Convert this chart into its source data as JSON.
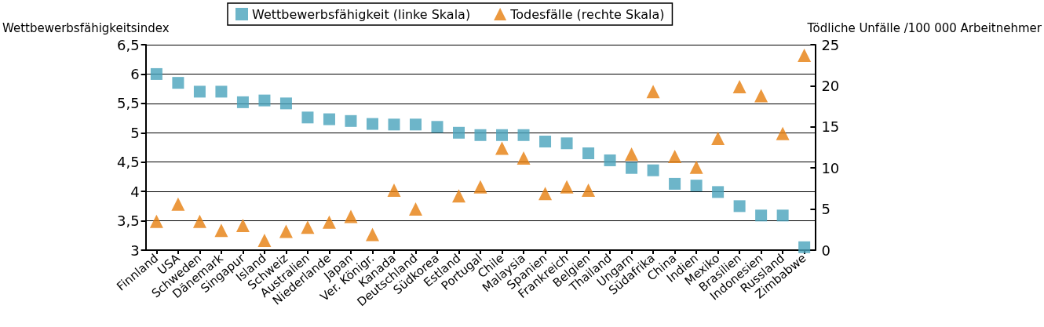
{
  "chart_data": {
    "type": "scatter",
    "ylabel": "Wettbewerbsfähigkeitsindex",
    "y2label": "Tödliche Unfälle /100 000 Arbeitnehmer",
    "categories": [
      "Finnland",
      "USA",
      "Schweden",
      "Dänemark",
      "Singapur",
      "Island",
      "Schweiz",
      "Australien",
      "Niederlande",
      "Japan",
      "Ver. Königr.",
      "Kanada",
      "Deutschland",
      "Südkorea",
      "Estland",
      "Portugal",
      "Chile",
      "Malaysia",
      "Spanien",
      "Frankreich",
      "Belgien",
      "Thailand",
      "Ungarn",
      "Südafrika",
      "China",
      "Indien",
      "Mexiko",
      "Brasilien",
      "Indonesien",
      "Russland",
      "Zimbabwe"
    ],
    "series": [
      {
        "name": "Wettbewerbsfähigkeit (linke Skala)",
        "color": "#48a3bb",
        "marker": "square",
        "values": [
          6.0,
          5.85,
          5.7,
          5.7,
          5.52,
          5.55,
          5.5,
          5.26,
          5.23,
          5.2,
          5.15,
          5.14,
          5.14,
          5.1,
          5.0,
          4.96,
          4.96,
          4.96,
          4.85,
          4.82,
          4.65,
          4.53,
          4.4,
          4.36,
          4.13,
          4.1,
          3.99,
          3.75,
          3.59,
          3.59,
          3.05
        ]
      },
      {
        "name": "Todesfälle (rechte Skala)",
        "color": "#e67e0e",
        "marker": "triangle",
        "axis": "y2",
        "values": [
          3.5,
          5.6,
          3.5,
          2.4,
          3.0,
          1.2,
          2.3,
          2.8,
          3.4,
          4.1,
          1.9,
          7.3,
          5.0,
          null,
          6.6,
          7.7,
          12.4,
          11.2,
          6.9,
          7.7,
          7.3,
          null,
          11.7,
          19.3,
          11.4,
          10.1,
          13.6,
          19.9,
          18.8,
          14.2,
          23.7
        ]
      }
    ],
    "ylim": [
      3,
      6.5
    ],
    "yticks": [
      3,
      {
        "value": 3.5,
        "label": "3,5"
      },
      4,
      {
        "value": 4.5,
        "label": "4,5"
      },
      5,
      {
        "value": 5.5,
        "label": "5,5"
      },
      6,
      {
        "value": 6.5,
        "label": "6,5"
      }
    ],
    "y2lim": [
      0,
      25
    ],
    "y2ticks": [
      0,
      5,
      10,
      15,
      20,
      25
    ],
    "grid": "y",
    "legend": "top"
  }
}
